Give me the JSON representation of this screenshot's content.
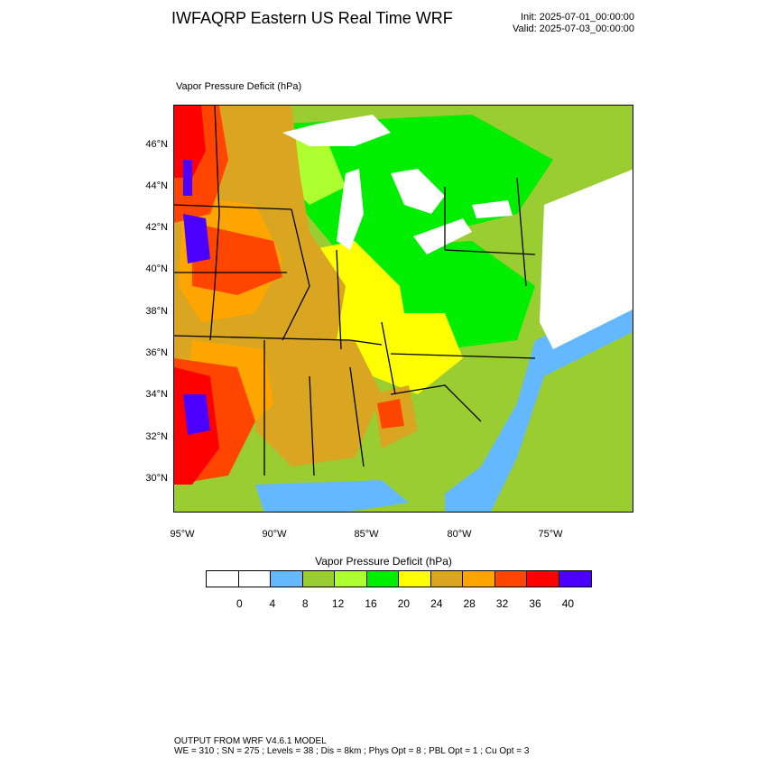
{
  "header": {
    "title": "IWFAQRP Eastern US Real Time WRF",
    "init": "Init: 2025-07-01_00:00:00",
    "valid": "Valid: 2025-07-03_00:00:00"
  },
  "plot": {
    "label": "Vapor Pressure Deficit   (hPa)",
    "lat_ticks": [
      "46°N",
      "44°N",
      "42°N",
      "40°N",
      "38°N",
      "36°N",
      "34°N",
      "32°N",
      "30°N"
    ],
    "lon_ticks": [
      "95°W",
      "90°W",
      "85°W",
      "80°W",
      "75°W"
    ]
  },
  "colorbar": {
    "title": "Vapor Pressure Deficit  (hPa)",
    "colors": [
      "#ffffff",
      "#ffffff",
      "#63b8ff",
      "#9acd32",
      "#adff2f",
      "#00ee00",
      "#ffff00",
      "#daa520",
      "#ffa500",
      "#ff4500",
      "#ff0000",
      "#4b00ff"
    ],
    "labels": [
      "0",
      "4",
      "8",
      "12",
      "16",
      "20",
      "24",
      "28",
      "32",
      "36",
      "40"
    ]
  },
  "footer": {
    "line1": "OUTPUT FROM WRF V4.6.1 MODEL",
    "line2": "WE = 310 ; SN = 275 ; Levels = 38 ; Dis = 8km ; Phys Opt = 8 ; PBL Opt = 1 ; Cu Opt = 3"
  }
}
